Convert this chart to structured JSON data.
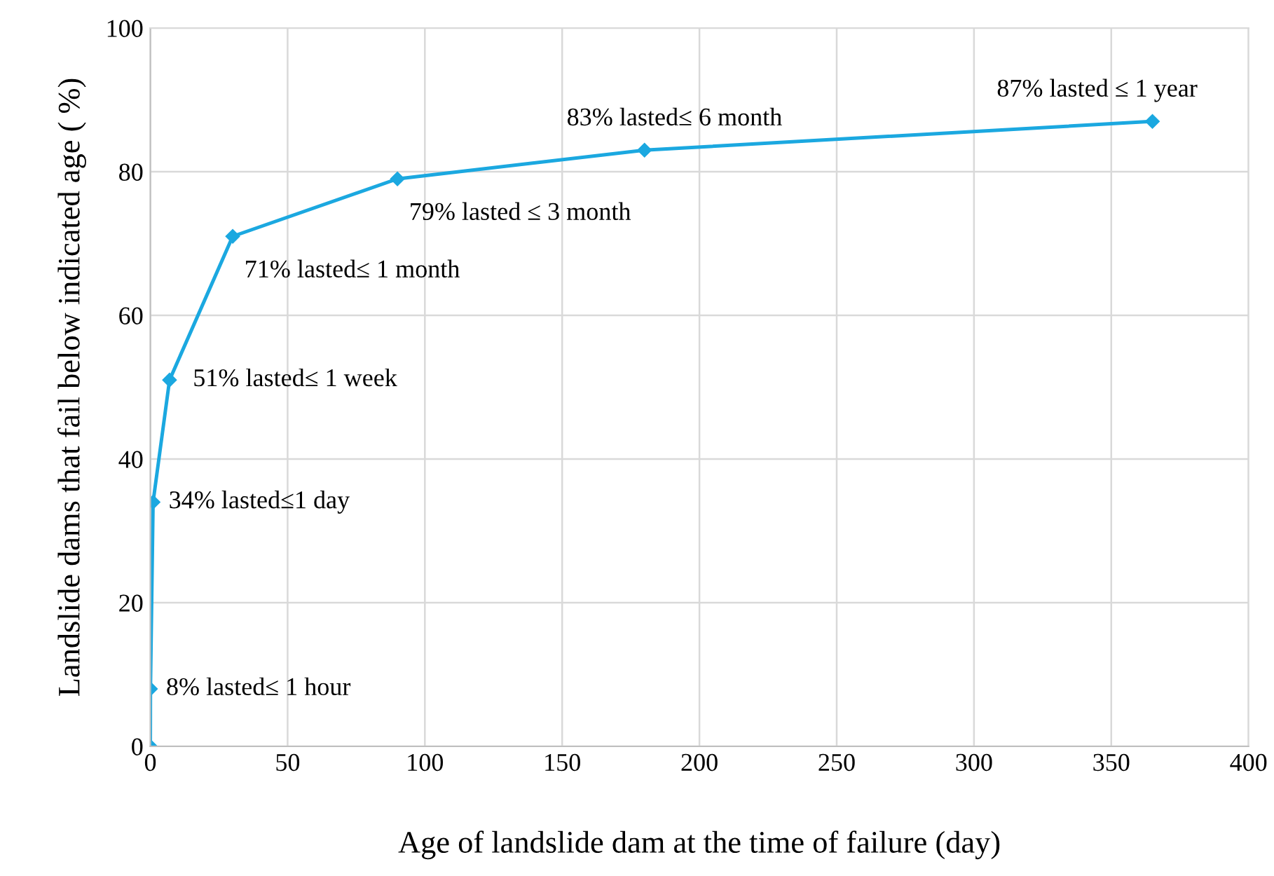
{
  "chart_data": {
    "type": "line",
    "xlabel": "Age of landslide dam at the time of failure (day)",
    "ylabel": "Landslide dams that fail below indicated age ( %)",
    "series": [
      {
        "color": "#1ba8e0",
        "x": [
          0,
          0.0417,
          1,
          7,
          30,
          90,
          180,
          365
        ],
        "values": [
          0,
          8,
          34,
          51,
          71,
          79,
          83,
          87
        ]
      }
    ],
    "xlim": [
      0,
      400
    ],
    "xticks": [
      0,
      50,
      100,
      150,
      200,
      250,
      300,
      350,
      400
    ],
    "ylim": [
      0,
      100
    ],
    "yticks": [
      0,
      20,
      40,
      60,
      80,
      100
    ],
    "grid": true,
    "marker": "diamond",
    "line_style": "solid",
    "annotations": [
      {
        "text": "8% lasted≤ 1 hour",
        "x": 0.0417,
        "y": 8
      },
      {
        "text": "34% lasted≤1 day",
        "x": 1,
        "y": 34
      },
      {
        "text": "51% lasted≤ 1 week",
        "x": 7,
        "y": 51
      },
      {
        "text": "71% lasted≤ 1 month",
        "x": 30,
        "y": 71
      },
      {
        "text": "79% lasted ≤ 3 month",
        "x": 90,
        "y": 79
      },
      {
        "text": "83% lasted≤ 6 month",
        "x": 180,
        "y": 83
      },
      {
        "text": "87% lasted ≤ 1 year",
        "x": 365,
        "y": 87
      }
    ]
  }
}
